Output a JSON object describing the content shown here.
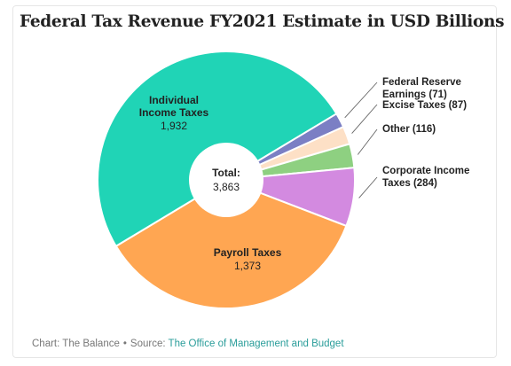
{
  "chart_data": {
    "type": "pie",
    "title": "Federal Tax Revenue FY2021 Estimate in USD Billions",
    "total_label": "Total:",
    "total_value": "3,863",
    "slices": [
      {
        "label": "Federal Reserve Earnings",
        "display_value": "71",
        "value": 71,
        "color": "#7b7fc4"
      },
      {
        "label": "Excise Taxes",
        "display_value": "87",
        "value": 87,
        "color": "#fde0c6"
      },
      {
        "label": "Other",
        "display_value": "116",
        "value": 116,
        "color": "#8ed081"
      },
      {
        "label": "Corporate Income Taxes",
        "display_value": "284",
        "value": 284,
        "color": "#d38ae0"
      },
      {
        "label": "Payroll Taxes",
        "display_value": "1,373",
        "value": 1373,
        "color": "#ffa652"
      },
      {
        "label": "Individual Income Taxes",
        "display_value": "1,932",
        "value": 1932,
        "color": "#20d4b6"
      }
    ]
  },
  "footer": {
    "chart_credit": "Chart: The Balance",
    "separator": "•",
    "source_prefix": "Source:",
    "source_name": "The Office of Management and Budget"
  }
}
